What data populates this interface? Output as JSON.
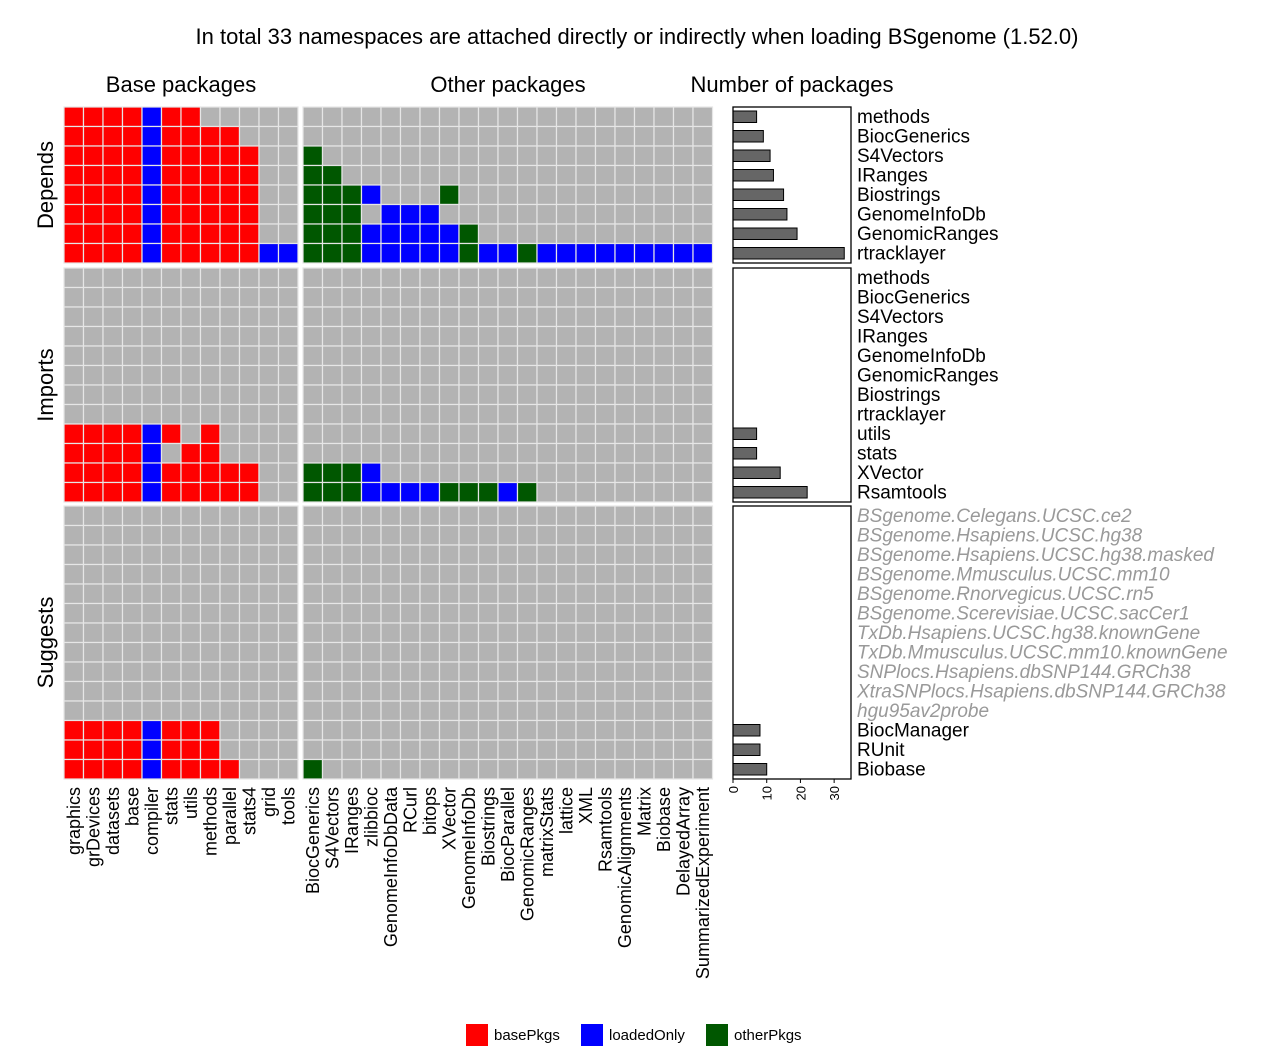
{
  "title": "In total 33 namespaces are attached directly or indirectly when loading BSgenome (1.52.0)",
  "panel_titles": {
    "base": "Base packages",
    "other": "Other packages",
    "count": "Number of packages"
  },
  "colors": {
    "basePkgs": "#ff0000",
    "loadedOnly": "#0000ff",
    "otherPkgs": "#005700",
    "empty": "#b3b3b3",
    "bar": "#666666"
  },
  "legend": [
    {
      "key": "basePkgs",
      "label": "basePkgs",
      "color": "#ff0000"
    },
    {
      "key": "loadedOnly",
      "label": "loadedOnly",
      "color": "#0000ff"
    },
    {
      "key": "otherPkgs",
      "label": "otherPkgs",
      "color": "#005700"
    }
  ],
  "chart_data": {
    "type": "heatmap",
    "base_columns": [
      "graphics",
      "grDevices",
      "datasets",
      "base",
      "compiler",
      "stats",
      "utils",
      "methods",
      "parallel",
      "stats4",
      "grid",
      "tools"
    ],
    "other_columns": [
      "BiocGenerics",
      "S4Vectors",
      "IRanges",
      "zlibbioc",
      "GenomeInfoDbData",
      "RCurl",
      "bitops",
      "XVector",
      "GenomeInfoDb",
      "Biostrings",
      "BiocParallel",
      "GenomicRanges",
      "matrixStats",
      "lattice",
      "XML",
      "Rsamtools",
      "GenomicAlignments",
      "Matrix",
      "Biobase",
      "DelayedArray",
      "SummarizedExperiment"
    ],
    "groups": [
      {
        "name": "Depends",
        "rows": [
          {
            "package": "methods",
            "count": 7,
            "italic": false,
            "base": "BBBBLBB.....",
            "other": "....................."
          },
          {
            "package": "BiocGenerics",
            "count": 9,
            "italic": false,
            "base": "BBBBLBBBB...",
            "other": "....................."
          },
          {
            "package": "S4Vectors",
            "count": 11,
            "italic": false,
            "base": "BBBBLBBBBB..",
            "other": "O...................."
          },
          {
            "package": "IRanges",
            "count": 12,
            "italic": false,
            "base": "BBBBLBBBBB..",
            "other": "OO..................."
          },
          {
            "package": "Biostrings",
            "count": 15,
            "italic": false,
            "base": "BBBBLBBBBB..",
            "other": "OOOL...O............."
          },
          {
            "package": "GenomeInfoDb",
            "count": 16,
            "italic": false,
            "base": "BBBBLBBBBB..",
            "other": "OOO.LLL.............."
          },
          {
            "package": "GenomicRanges",
            "count": 19,
            "italic": false,
            "base": "BBBBLBBBBB..",
            "other": "OOOLLLLLO............"
          },
          {
            "package": "rtracklayer",
            "count": 33,
            "italic": false,
            "base": "BBBBLBBBBBLL",
            "other": "OOOLLLLLOLLOLLLLLLLLL"
          }
        ]
      },
      {
        "name": "Imports",
        "rows": [
          {
            "package": "methods",
            "count": 0,
            "italic": false,
            "base": "............",
            "other": "....................."
          },
          {
            "package": "BiocGenerics",
            "count": 0,
            "italic": false,
            "base": "............",
            "other": "....................."
          },
          {
            "package": "S4Vectors",
            "count": 0,
            "italic": false,
            "base": "............",
            "other": "....................."
          },
          {
            "package": "IRanges",
            "count": 0,
            "italic": false,
            "base": "............",
            "other": "....................."
          },
          {
            "package": "GenomeInfoDb",
            "count": 0,
            "italic": false,
            "base": "............",
            "other": "....................."
          },
          {
            "package": "GenomicRanges",
            "count": 0,
            "italic": false,
            "base": "............",
            "other": "....................."
          },
          {
            "package": "Biostrings",
            "count": 0,
            "italic": false,
            "base": "............",
            "other": "....................."
          },
          {
            "package": "rtracklayer",
            "count": 0,
            "italic": false,
            "base": "............",
            "other": "....................."
          },
          {
            "package": "utils",
            "count": 7,
            "italic": false,
            "base": "BBBBLB.B....",
            "other": "....................."
          },
          {
            "package": "stats",
            "count": 7,
            "italic": false,
            "base": "BBBBL.BB....",
            "other": "....................."
          },
          {
            "package": "XVector",
            "count": 14,
            "italic": false,
            "base": "BBBBLBBBBB..",
            "other": "OOOL................."
          },
          {
            "package": "Rsamtools",
            "count": 22,
            "italic": false,
            "base": "BBBBLBBBBB..",
            "other": "OOOLLLLOOOLO........."
          }
        ]
      },
      {
        "name": "Suggests",
        "rows": [
          {
            "package": "BSgenome.Celegans.UCSC.ce2",
            "count": 0,
            "italic": true,
            "base": "............",
            "other": "....................."
          },
          {
            "package": "BSgenome.Hsapiens.UCSC.hg38",
            "count": 0,
            "italic": true,
            "base": "............",
            "other": "....................."
          },
          {
            "package": "BSgenome.Hsapiens.UCSC.hg38.masked",
            "count": 0,
            "italic": true,
            "base": "............",
            "other": "....................."
          },
          {
            "package": "BSgenome.Mmusculus.UCSC.mm10",
            "count": 0,
            "italic": true,
            "base": "............",
            "other": "....................."
          },
          {
            "package": "BSgenome.Rnorvegicus.UCSC.rn5",
            "count": 0,
            "italic": true,
            "base": "............",
            "other": "....................."
          },
          {
            "package": "BSgenome.Scerevisiae.UCSC.sacCer1",
            "count": 0,
            "italic": true,
            "base": "............",
            "other": "....................."
          },
          {
            "package": "TxDb.Hsapiens.UCSC.hg38.knownGene",
            "count": 0,
            "italic": true,
            "base": "............",
            "other": "....................."
          },
          {
            "package": "TxDb.Mmusculus.UCSC.mm10.knownGene",
            "count": 0,
            "italic": true,
            "base": "............",
            "other": "....................."
          },
          {
            "package": "SNPlocs.Hsapiens.dbSNP144.GRCh38",
            "count": 0,
            "italic": true,
            "base": "............",
            "other": "....................."
          },
          {
            "package": "XtraSNPlocs.Hsapiens.dbSNP144.GRCh38",
            "count": 0,
            "italic": true,
            "base": "............",
            "other": "....................."
          },
          {
            "package": "hgu95av2probe",
            "count": 0,
            "italic": true,
            "base": "............",
            "other": "....................."
          },
          {
            "package": "BiocManager",
            "count": 8,
            "italic": false,
            "base": "BBBBLBBB....",
            "other": "....................."
          },
          {
            "package": "RUnit",
            "count": 8,
            "italic": false,
            "base": "BBBBLBBB....",
            "other": "....................."
          },
          {
            "package": "Biobase",
            "count": 10,
            "italic": false,
            "base": "BBBBLBBBB...",
            "other": "O...................."
          }
        ]
      }
    ],
    "bar_axis": {
      "ticks": [
        0,
        10,
        20,
        30
      ],
      "range": [
        0,
        35
      ]
    }
  }
}
